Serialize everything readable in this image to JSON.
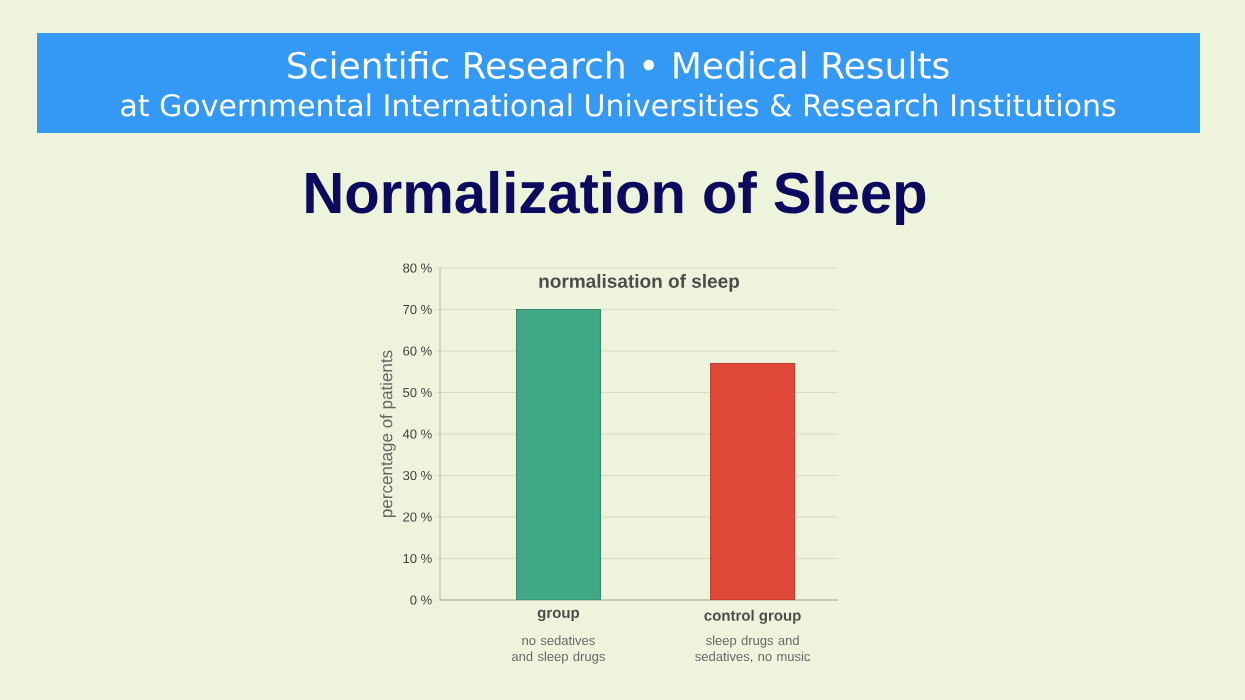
{
  "chart_data": {
    "type": "bar",
    "title": "Normalization of Sleep",
    "subtitle": "normalisation of sleep",
    "ylabel": "percentage of patients",
    "categories": [
      "group",
      "control group"
    ],
    "values": [
      70,
      57
    ],
    "colors": [
      "#3fa886",
      "#e0483a"
    ],
    "ylim": [
      0,
      80
    ],
    "yticks": [
      {
        "value": 0,
        "label": "0 %"
      },
      {
        "value": 10,
        "label": "10 %"
      },
      {
        "value": 20,
        "label": "20 %"
      },
      {
        "value": 30,
        "label": "30 %"
      },
      {
        "value": 40,
        "label": "40 %"
      },
      {
        "value": 50,
        "label": "50 %"
      },
      {
        "value": 60,
        "label": "60 %"
      },
      {
        "value": 70,
        "label": "70 %"
      },
      {
        "value": 80,
        "label": "80 %"
      }
    ],
    "grid": "y",
    "annotations": [
      "Scientific Research  •  Medical Results",
      "at Governmental International Universities & Research Institutions",
      "no sedatives and sleep drugs",
      "sleep drugs and sedatives, no music"
    ]
  }
}
